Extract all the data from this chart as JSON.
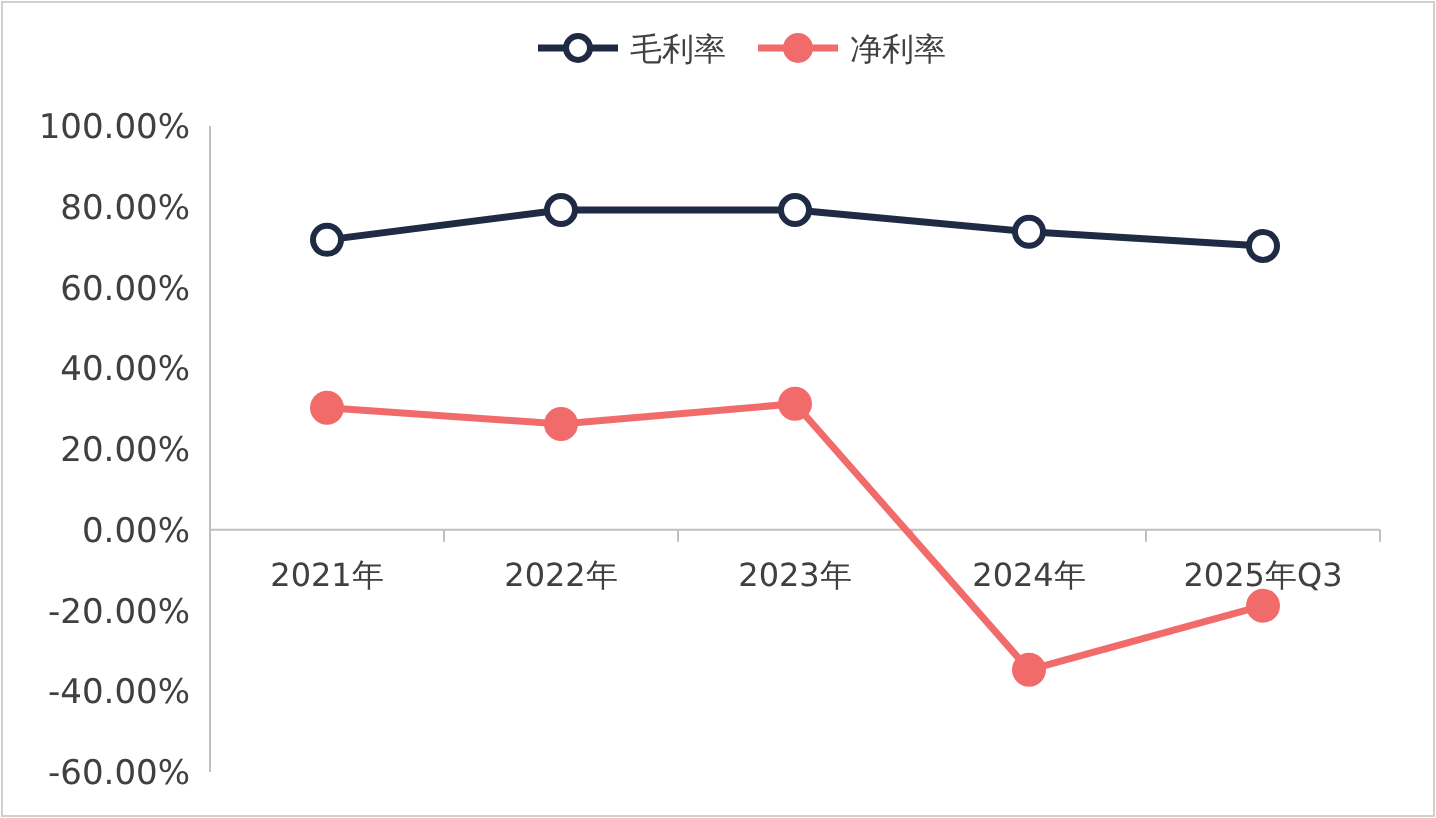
{
  "chart_data": {
    "type": "line",
    "categories": [
      "2021年",
      "2022年",
      "2023年",
      "2024年",
      "2025年Q3"
    ],
    "series": [
      {
        "name": "毛利率",
        "color": "#1f2a44",
        "values": [
          71.8,
          79.2,
          79.2,
          73.8,
          70.3
        ]
      },
      {
        "name": "净利率",
        "color": "#f26b6b",
        "values": [
          30.2,
          26.2,
          31.2,
          -34.7,
          -18.8
        ]
      }
    ],
    "ylim": [
      -60,
      100
    ],
    "yticks": [
      {
        "value": -60,
        "label": "-60.00%"
      },
      {
        "value": -40,
        "label": "-40.00%"
      },
      {
        "value": -20,
        "label": "-20.00%"
      },
      {
        "value": 0,
        "label": "0.00%"
      },
      {
        "value": 20,
        "label": "20.00%"
      },
      {
        "value": 40,
        "label": "40.00%"
      },
      {
        "value": 60,
        "label": "60.00%"
      },
      {
        "value": 80,
        "label": "80.00%"
      },
      {
        "value": 100,
        "label": "100.00%"
      }
    ],
    "grid": false,
    "legend": "top",
    "marker": "circle",
    "line_style": "solid"
  }
}
